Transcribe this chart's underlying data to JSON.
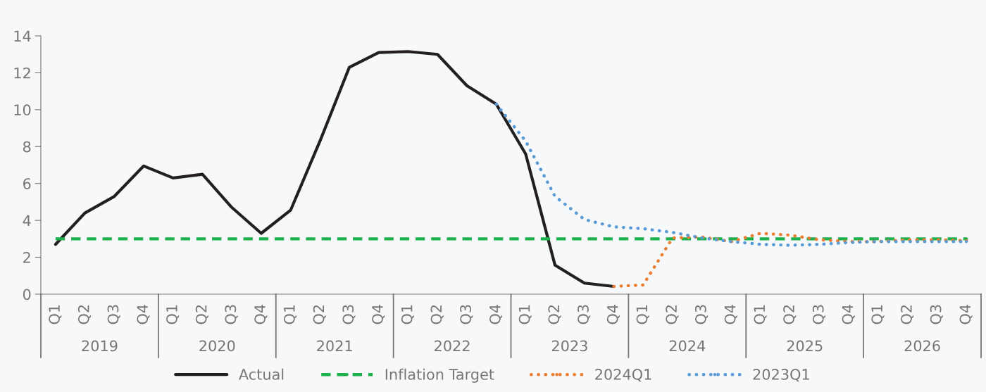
{
  "chart_data": {
    "type": "line",
    "categories": [
      "Q1",
      "Q2",
      "Q3",
      "Q4",
      "Q1",
      "Q2",
      "Q3",
      "Q4",
      "Q1",
      "Q2",
      "Q3",
      "Q4",
      "Q1",
      "Q2",
      "Q3",
      "Q4",
      "Q1",
      "Q2",
      "Q3",
      "Q4",
      "Q1",
      "Q2",
      "Q3",
      "Q4",
      "Q1",
      "Q2",
      "Q3",
      "Q4",
      "Q1",
      "Q2",
      "Q3",
      "Q4"
    ],
    "annotations": [
      "2019",
      "2020",
      "2021",
      "2022",
      "2023",
      "2024",
      "2025",
      "2026"
    ],
    "series": [
      {
        "name": "Actual",
        "color": "#231f20",
        "line_style": "solid",
        "values": [
          2.7,
          4.4,
          5.3,
          6.95,
          6.3,
          6.5,
          4.7,
          3.3,
          4.55,
          8.3,
          12.3,
          13.1,
          13.15,
          13.0,
          11.3,
          10.3,
          7.6,
          1.57,
          0.6,
          0.42,
          null,
          null,
          null,
          null,
          null,
          null,
          null,
          null,
          null,
          null,
          null,
          null
        ]
      },
      {
        "name": "Inflation Target",
        "color": "#1db04b",
        "line_style": "dashed",
        "values": [
          3,
          3,
          3,
          3,
          3,
          3,
          3,
          3,
          3,
          3,
          3,
          3,
          3,
          3,
          3,
          3,
          3,
          3,
          3,
          3,
          3,
          3,
          3,
          3,
          3,
          3,
          3,
          3,
          3,
          3,
          3,
          3
        ]
      },
      {
        "name": "2024Q1",
        "color": "#ed7d31",
        "line_style": "dotted",
        "values": [
          null,
          null,
          null,
          null,
          null,
          null,
          null,
          null,
          null,
          null,
          null,
          null,
          null,
          null,
          null,
          null,
          null,
          null,
          null,
          0.42,
          0.5,
          3.05,
          3.1,
          2.85,
          3.3,
          3.2,
          2.95,
          2.85,
          2.85,
          2.95,
          2.95,
          2.9
        ]
      },
      {
        "name": "2023Q1",
        "color": "#5b9bd5",
        "line_style": "dotted",
        "values": [
          null,
          null,
          null,
          null,
          null,
          null,
          null,
          null,
          null,
          null,
          null,
          null,
          null,
          null,
          null,
          10.3,
          8.3,
          5.3,
          4.05,
          3.65,
          3.55,
          3.35,
          3.05,
          2.85,
          2.7,
          2.65,
          2.7,
          2.8,
          2.85,
          2.85,
          2.85,
          2.85
        ]
      }
    ],
    "ylim": [
      0,
      14
    ],
    "yticks": [
      0,
      2,
      4,
      6,
      8,
      10,
      12,
      14
    ],
    "grid": false,
    "legend": "bottom"
  }
}
